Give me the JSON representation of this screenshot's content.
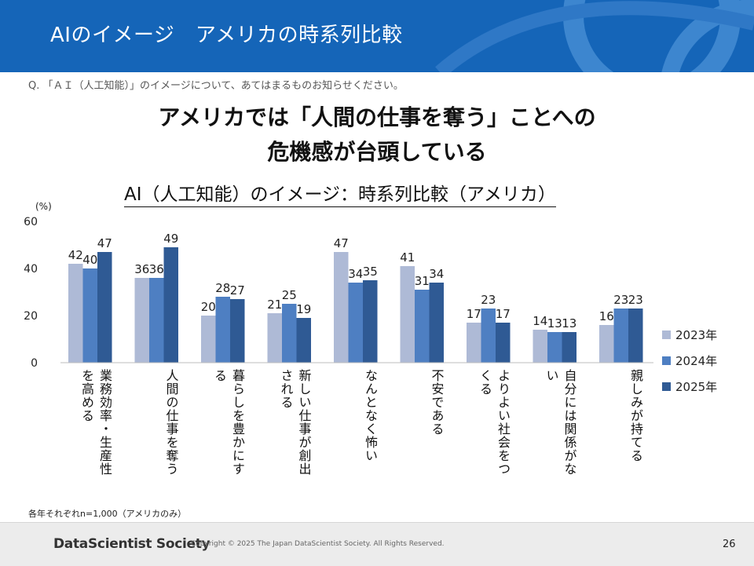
{
  "header": {
    "title": "AIのイメージ　アメリカの時系列比較"
  },
  "question": "Q. 「ＡＩ（人工知能）」のイメージについて、あてはまるものお知らせください。",
  "headline": {
    "line1": "アメリカでは「人間の仕事を奪う」ことへの",
    "line2": "危機感が台頭している"
  },
  "chart_data": {
    "type": "bar",
    "title": "AI（人工知能）のイメージ：時系列比較（アメリカ）",
    "ylabel": "(%)",
    "ylim": [
      0,
      60
    ],
    "yticks": [
      0,
      20,
      40,
      60
    ],
    "grid": false,
    "legend_position": "right",
    "categories": [
      {
        "name": "業務効率・生産性を高める",
        "lines": [
          "業務効率・生産性",
          "を高める"
        ]
      },
      {
        "name": "人間の仕事を奪う",
        "lines": [
          "人間の仕事を奪う"
        ]
      },
      {
        "name": "暮らしを豊かにする",
        "lines": [
          "暮らしを豊かにす",
          "る"
        ]
      },
      {
        "name": "新しい仕事が創出される",
        "lines": [
          "新しい仕事が創出",
          "される"
        ]
      },
      {
        "name": "なんとなく怖い",
        "lines": [
          "なんとなく怖い"
        ]
      },
      {
        "name": "不安である",
        "lines": [
          "不安である"
        ]
      },
      {
        "name": "よりよい社会をつくる",
        "lines": [
          "よりよい社会をつ",
          "くる"
        ]
      },
      {
        "name": "自分には関係がない",
        "lines": [
          "自分には関係がな",
          "い"
        ]
      },
      {
        "name": "親しみが持てる",
        "lines": [
          "親しみが持てる"
        ]
      }
    ],
    "series": [
      {
        "name": "2023年",
        "color": "#aebad6",
        "values": [
          42,
          36,
          20,
          21,
          47,
          41,
          17,
          14,
          16
        ]
      },
      {
        "name": "2024年",
        "color": "#4e7fc2",
        "values": [
          40,
          36,
          28,
          25,
          34,
          31,
          23,
          13,
          23
        ]
      },
      {
        "name": "2025年",
        "color": "#2f5a94",
        "values": [
          47,
          49,
          27,
          19,
          35,
          34,
          17,
          13,
          23
        ]
      }
    ]
  },
  "footnote": "各年それぞれn=1,000（アメリカのみ）",
  "footer": {
    "brand": "DataScientist Society",
    "copyright": "Copyright © 2025 The Japan DataScientist Society. All Rights Reserved.",
    "page_number": "26"
  }
}
